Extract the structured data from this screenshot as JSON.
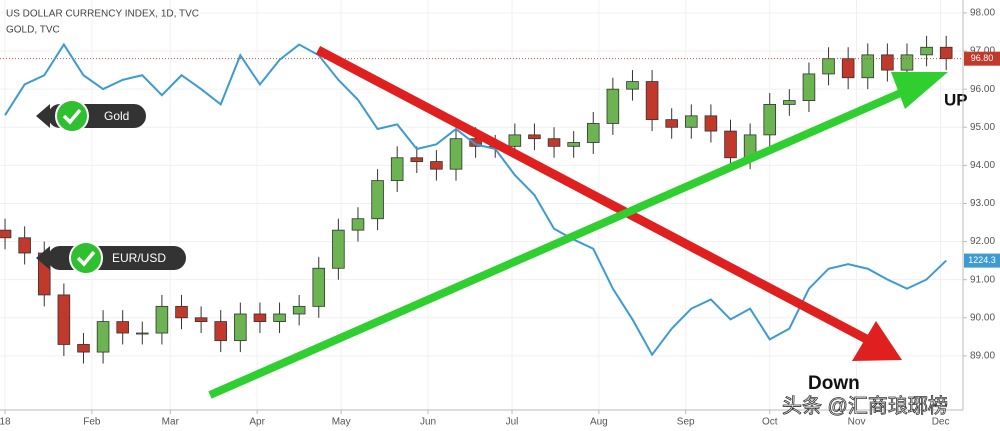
{
  "chart_data": {
    "type": "candlestick",
    "title": "US DOLLAR CURRENCY INDEX, 1D, TVC",
    "grid": true,
    "xlim": [
      -1.8,
      342
    ],
    "xticks": [
      {
        "value": 0,
        "label": "18"
      },
      {
        "value": 31,
        "label": "Feb"
      },
      {
        "value": 59,
        "label": "Mar"
      },
      {
        "value": 90,
        "label": "Apr"
      },
      {
        "value": 120,
        "label": "May"
      },
      {
        "value": 151,
        "label": "Jun"
      },
      {
        "value": 181,
        "label": "Jul"
      },
      {
        "value": 212,
        "label": "Aug"
      },
      {
        "value": 243,
        "label": "Sep"
      },
      {
        "value": 273,
        "label": "Oct"
      },
      {
        "value": 304,
        "label": "Nov"
      },
      {
        "value": 334,
        "label": "Dec"
      }
    ],
    "ylim": [
      87.58,
      98.34
    ],
    "yticks": [
      {
        "value": 89,
        "label": "89.00"
      },
      {
        "value": 90,
        "label": "90.00"
      },
      {
        "value": 91,
        "label": "91.00"
      },
      {
        "value": 92,
        "label": "92.00"
      },
      {
        "value": 93,
        "label": "93.00"
      },
      {
        "value": 94,
        "label": "94.00"
      },
      {
        "value": 95,
        "label": "95.00"
      },
      {
        "value": 96,
        "label": "96.00"
      },
      {
        "value": 97,
        "label": "97.00"
      },
      {
        "value": 98,
        "label": "98.00"
      }
    ],
    "y2lim": [
      1127,
      1394
    ],
    "series": [
      {
        "type": "candlestick",
        "up_color": "#6cb352",
        "down_color": "#c0392b",
        "last_label": "96.80",
        "last_color": "#c0392b",
        "x": [
          0,
          7,
          14,
          21,
          28,
          35,
          42,
          49,
          56,
          63,
          70,
          77,
          84,
          91,
          98,
          105,
          112,
          119,
          126,
          133,
          140,
          147,
          154,
          161,
          168,
          175,
          182,
          189,
          196,
          203,
          210,
          217,
          224,
          231,
          238,
          245,
          252,
          259,
          266,
          273,
          280,
          287,
          294,
          301,
          308,
          315,
          322,
          329,
          336
        ],
        "open": [
          92.3,
          92.1,
          91.7,
          90.6,
          89.3,
          89.1,
          89.9,
          89.6,
          89.6,
          90.3,
          90.0,
          89.9,
          89.4,
          90.1,
          89.9,
          90.1,
          90.3,
          91.3,
          92.3,
          92.6,
          93.6,
          94.2,
          94.1,
          93.9,
          94.7,
          94.5,
          94.5,
          94.8,
          94.7,
          94.5,
          94.6,
          95.1,
          96.0,
          96.2,
          95.2,
          95.0,
          95.3,
          94.9,
          94.2,
          94.8,
          95.6,
          95.7,
          96.4,
          96.8,
          96.3,
          96.9,
          96.5,
          96.9,
          97.1
        ],
        "high": [
          92.6,
          92.4,
          92.0,
          90.9,
          89.6,
          90.2,
          90.2,
          89.9,
          90.6,
          90.6,
          90.3,
          90.2,
          90.4,
          90.4,
          90.4,
          90.6,
          91.6,
          92.6,
          92.9,
          93.9,
          94.5,
          94.5,
          94.4,
          95.0,
          95.0,
          94.8,
          95.1,
          95.1,
          95.0,
          94.9,
          95.4,
          96.3,
          96.5,
          96.5,
          95.5,
          95.6,
          95.6,
          95.2,
          95.1,
          95.9,
          96.0,
          96.7,
          97.1,
          97.1,
          97.2,
          97.2,
          97.2,
          97.4,
          97.4
        ],
        "low": [
          91.8,
          91.4,
          90.3,
          89.0,
          88.8,
          88.8,
          89.3,
          89.3,
          89.3,
          89.7,
          89.6,
          89.1,
          89.1,
          89.6,
          89.6,
          89.8,
          90.0,
          91.0,
          92.0,
          92.3,
          93.3,
          93.8,
          93.6,
          93.6,
          94.2,
          94.2,
          94.2,
          94.4,
          94.2,
          94.2,
          94.3,
          94.8,
          95.7,
          94.9,
          94.7,
          94.7,
          94.6,
          93.9,
          93.9,
          94.5,
          95.3,
          95.4,
          96.1,
          96.0,
          96.0,
          96.2,
          96.2,
          96.6,
          96.5
        ],
        "close": [
          92.1,
          91.7,
          90.6,
          89.3,
          89.1,
          89.9,
          89.6,
          89.6,
          90.3,
          90.0,
          89.9,
          89.4,
          90.1,
          89.9,
          90.1,
          90.3,
          91.3,
          92.3,
          92.6,
          93.6,
          94.2,
          94.1,
          93.9,
          94.7,
          94.5,
          94.5,
          94.8,
          94.7,
          94.5,
          94.6,
          95.1,
          96.0,
          96.2,
          95.2,
          95.0,
          95.3,
          94.9,
          94.2,
          94.8,
          95.6,
          95.7,
          96.4,
          96.8,
          96.3,
          96.9,
          96.5,
          96.9,
          97.1,
          96.8
        ]
      },
      {
        "type": "line",
        "name": "GOLD, TVC",
        "axis": "y2",
        "color": "#3d9bd1",
        "last_label": "1224.3",
        "x": [
          0,
          7,
          14,
          21,
          28,
          35,
          42,
          49,
          56,
          63,
          70,
          77,
          84,
          91,
          98,
          105,
          112,
          119,
          126,
          133,
          140,
          147,
          154,
          161,
          168,
          175,
          182,
          189,
          196,
          203,
          210,
          217,
          224,
          231,
          238,
          245,
          252,
          259,
          266,
          273,
          280,
          287,
          294,
          301,
          308,
          315,
          322,
          329,
          336
        ],
        "values": [
          1319,
          1339,
          1345,
          1365,
          1345,
          1336,
          1342,
          1345,
          1332,
          1345,
          1336,
          1326,
          1358,
          1339,
          1355,
          1365,
          1358,
          1342,
          1329,
          1310,
          1313,
          1297,
          1300,
          1310,
          1300,
          1297,
          1280,
          1267,
          1245,
          1238,
          1232,
          1206,
          1186,
          1163,
          1180,
          1193,
          1199,
          1186,
          1193,
          1173,
          1180,
          1206,
          1219,
          1222,
          1219,
          1212,
          1206,
          1212,
          1224.3
        ]
      }
    ],
    "annotations": {
      "gold_badge": "Gold",
      "eurusd_badge": "EUR/USD",
      "up": "UP",
      "down": "Down"
    },
    "watermark": "头条 @汇商琅琊榜"
  }
}
